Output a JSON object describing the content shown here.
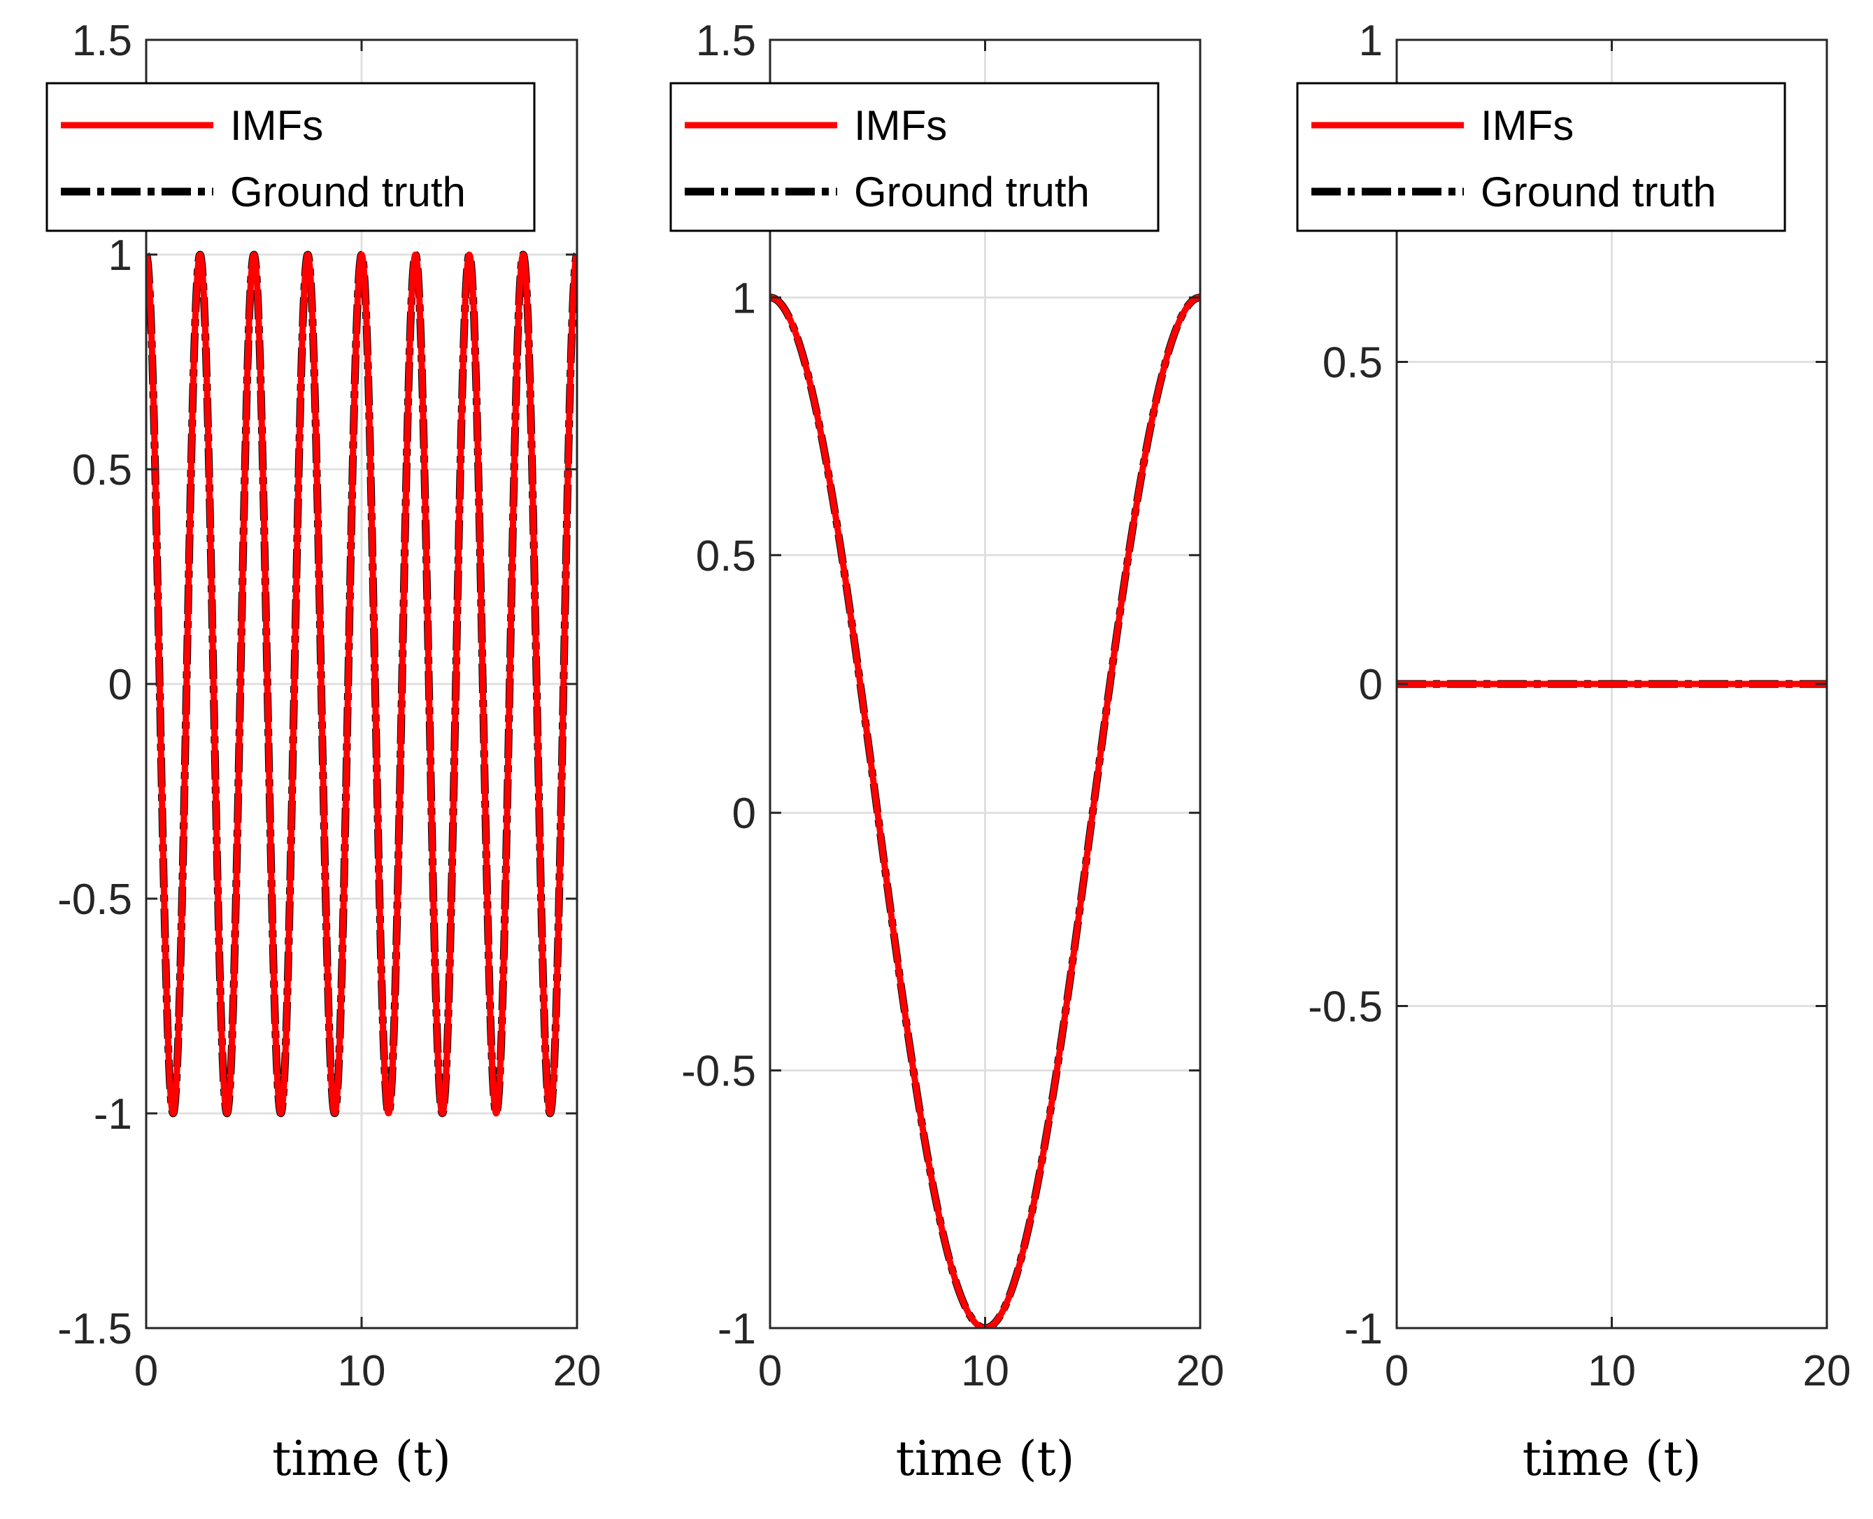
{
  "figure": {
    "background": "#ffffff",
    "grid_color": "#e0e0e0",
    "axis_color": "#262626"
  },
  "series_styles": {
    "imfs": {
      "name": "IMFs",
      "color": "#ff0000",
      "style": "solid"
    },
    "truth": {
      "name": "Ground truth",
      "color": "#000000",
      "style": "dash-dot"
    }
  },
  "chart_data": [
    {
      "type": "line",
      "title": "",
      "xlabel": "time (t)",
      "ylabel": "",
      "xlim": [
        0,
        20
      ],
      "ylim": [
        -1.5,
        1.5
      ],
      "grid": true,
      "legend": {
        "position": "top-left",
        "entries": [
          "IMFs",
          "Ground truth"
        ]
      },
      "xticks": [
        0,
        10,
        20
      ],
      "xtick_labels": [
        "0",
        "10",
        "20"
      ],
      "yticks": [
        -1.5,
        -1,
        -0.5,
        0,
        0.5,
        1,
        1.5
      ],
      "ytick_labels": [
        "-1.5",
        "-1",
        "-0.5",
        "0",
        "0.5",
        "1",
        "1.5"
      ],
      "series": [
        {
          "name": "IMFs",
          "function": "cos",
          "amplitude": 1,
          "frequency": 0.4,
          "offset": 0,
          "t_start": 0,
          "t_end": 20,
          "samples": 800
        },
        {
          "name": "Ground truth",
          "function": "cos",
          "amplitude": 1,
          "frequency": 0.4,
          "offset": 0,
          "t_start": 0,
          "t_end": 20,
          "samples": 800
        }
      ]
    },
    {
      "type": "line",
      "title": "",
      "xlabel": "time (t)",
      "ylabel": "",
      "xlim": [
        0,
        20
      ],
      "ylim": [
        -1,
        1.5
      ],
      "grid": true,
      "legend": {
        "position": "top-left",
        "entries": [
          "IMFs",
          "Ground truth"
        ]
      },
      "xticks": [
        0,
        10,
        20
      ],
      "xtick_labels": [
        "0",
        "10",
        "20"
      ],
      "yticks": [
        -1,
        -0.5,
        0,
        0.5,
        1,
        1.5
      ],
      "ytick_labels": [
        "-1",
        "-0.5",
        "0",
        "0.5",
        "1",
        "1.5"
      ],
      "series": [
        {
          "name": "IMFs",
          "function": "cos",
          "amplitude": 1,
          "frequency": 0.05,
          "offset": 0,
          "t_start": 0,
          "t_end": 20,
          "samples": 400
        },
        {
          "name": "Ground truth",
          "function": "cos",
          "amplitude": 1,
          "frequency": 0.05,
          "offset": 0,
          "t_start": 0,
          "t_end": 20,
          "samples": 400
        }
      ]
    },
    {
      "type": "line",
      "title": "",
      "xlabel": "time (t)",
      "ylabel": "",
      "xlim": [
        0,
        20
      ],
      "ylim": [
        -1,
        1
      ],
      "grid": true,
      "legend": {
        "position": "top-left",
        "entries": [
          "IMFs",
          "Ground truth"
        ]
      },
      "xticks": [
        0,
        10,
        20
      ],
      "xtick_labels": [
        "0",
        "10",
        "20"
      ],
      "yticks": [
        -1,
        -0.5,
        0,
        0.5,
        1
      ],
      "ytick_labels": [
        "-1",
        "-0.5",
        "0",
        "0.5",
        "1"
      ],
      "series": [
        {
          "name": "IMFs",
          "function": "constant",
          "amplitude": 0,
          "frequency": 0,
          "offset": 0,
          "t_start": 0,
          "t_end": 20,
          "samples": 2
        },
        {
          "name": "Ground truth",
          "function": "constant",
          "amplitude": 0,
          "frequency": 0,
          "offset": 0,
          "t_start": 0,
          "t_end": 20,
          "samples": 2
        }
      ]
    }
  ]
}
